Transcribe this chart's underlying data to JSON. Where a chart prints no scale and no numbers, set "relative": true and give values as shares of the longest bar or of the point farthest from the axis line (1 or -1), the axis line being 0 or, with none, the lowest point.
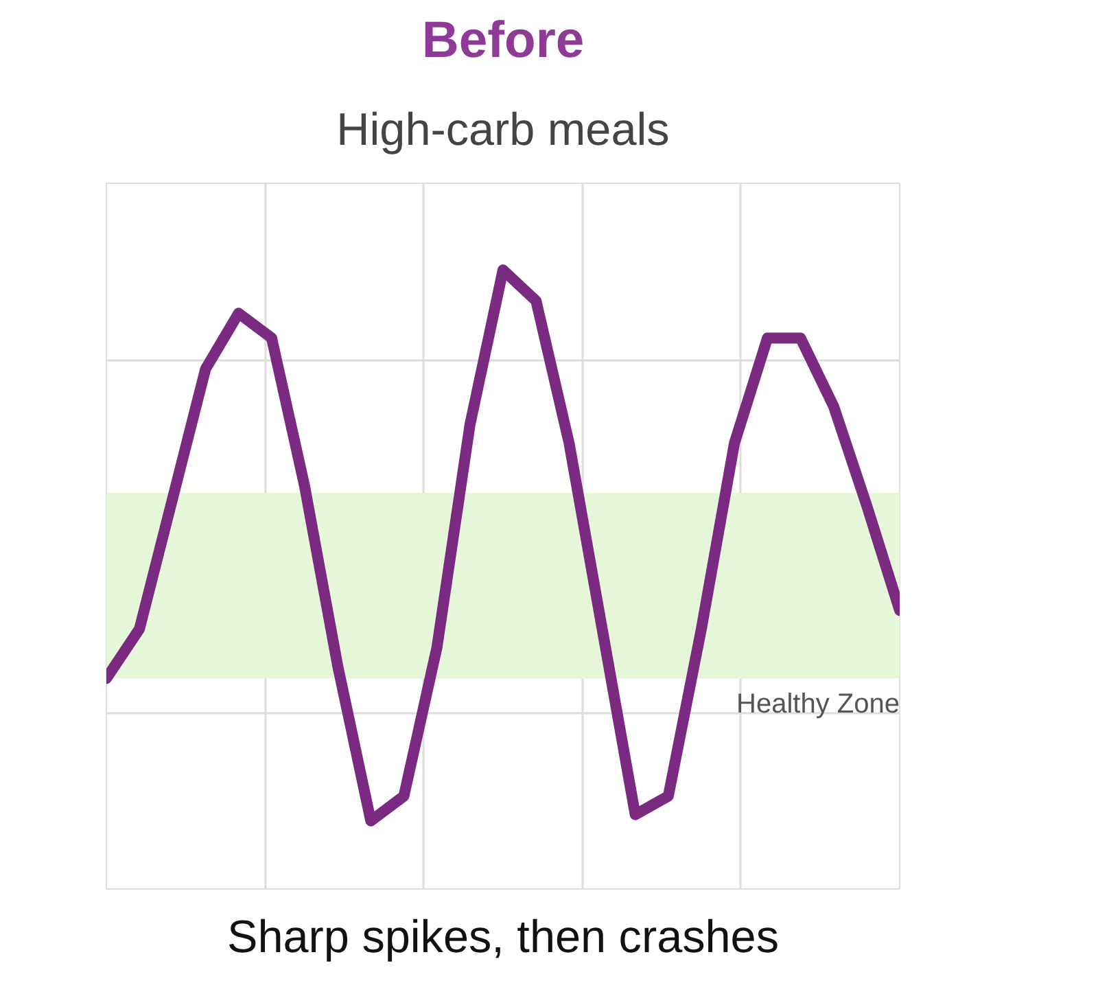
{
  "chart_data": {
    "type": "line",
    "title": "Before",
    "subtitle": "High-carb meals",
    "relative": true,
    "grid": true,
    "marker": "none",
    "line_style": "solid",
    "categories": [
      null,
      null,
      null,
      null,
      null,
      null,
      null,
      null,
      null,
      null,
      null,
      null,
      null,
      null,
      null,
      null,
      null,
      null,
      null,
      null,
      null,
      null,
      null,
      null,
      null
    ],
    "series": [
      {
        "color": "#7a2a80",
        "values": [
          0.34,
          0.42,
          0.63,
          0.84,
          0.93,
          0.89,
          0.65,
          0.36,
          0.11,
          0.15,
          0.39,
          0.75,
          1.0,
          0.95,
          0.72,
          0.42,
          0.12,
          0.15,
          0.42,
          0.72,
          0.89,
          0.89,
          0.78,
          0.62,
          0.45
        ]
      }
    ],
    "bands": [
      {
        "axis": "y",
        "from": 0.34,
        "to": 0.64,
        "label": "Healthy Zone",
        "color": "#e6f7d9"
      }
    ],
    "annotations": [
      "Sharp spikes, then crashes"
    ]
  }
}
